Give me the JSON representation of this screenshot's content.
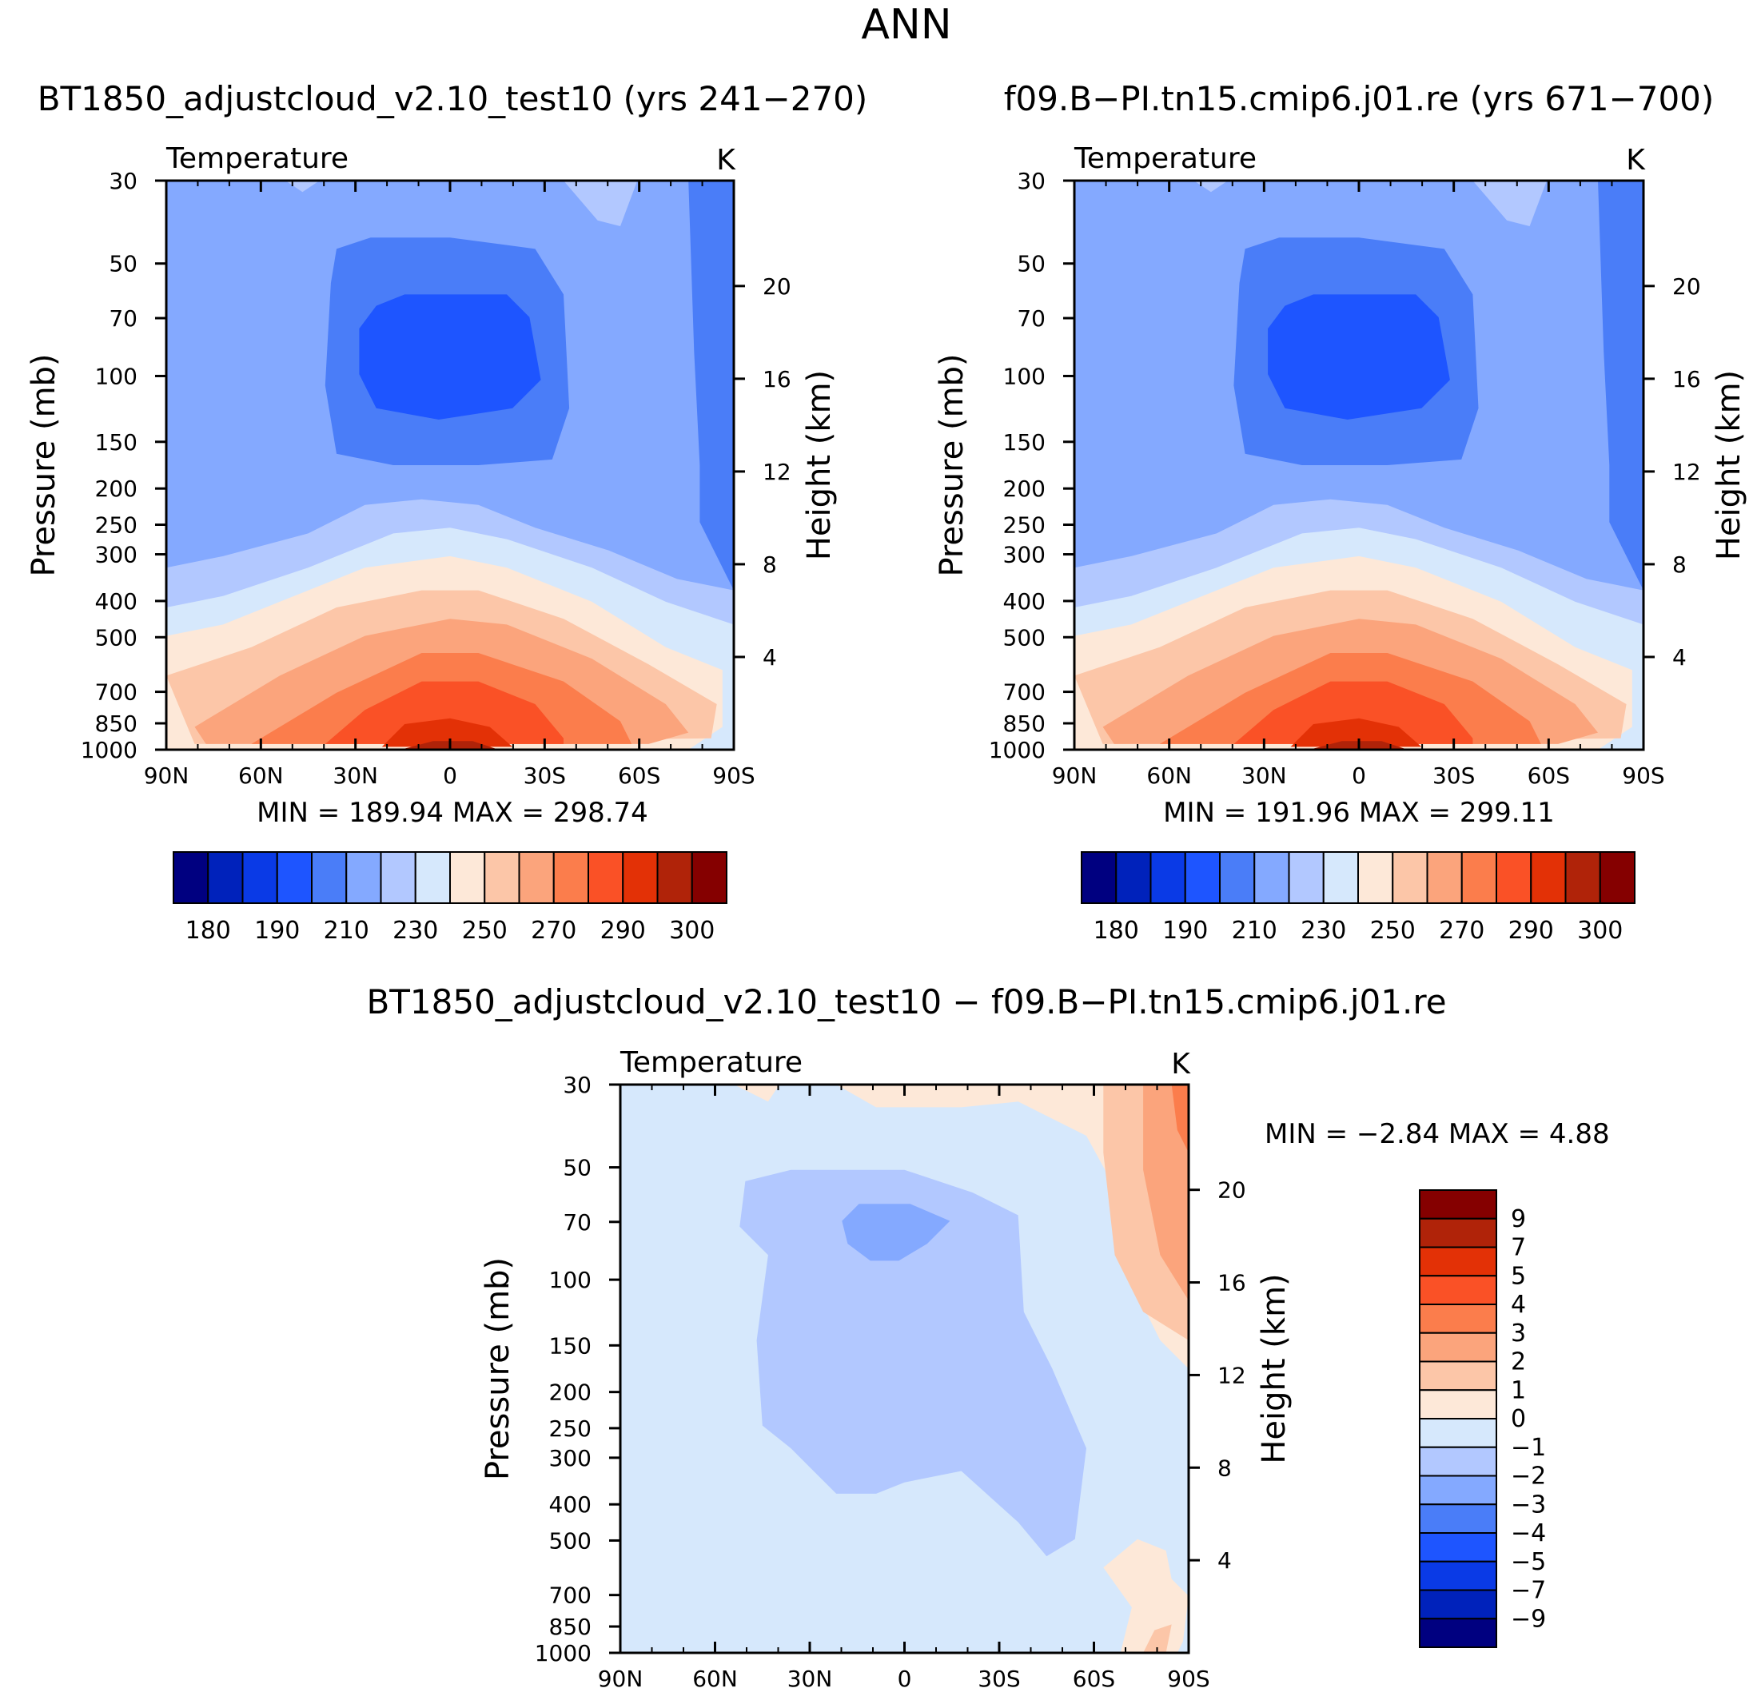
{
  "figure_title": "ANN",
  "chart_data": [
    {
      "id": "p1",
      "type": "contour",
      "title": "BT1850_adjustcloud_v2.10_test10 (yrs 241−270)",
      "variable": "Temperature",
      "units": "K",
      "xlabel": "",
      "ylabel": "Pressure (mb)",
      "ylabel_right": "Height (km)",
      "x_ticks": [
        "90N",
        "60N",
        "30N",
        "0",
        "30S",
        "60S",
        "90S"
      ],
      "y_ticks": [
        30,
        50,
        70,
        100,
        150,
        200,
        250,
        300,
        400,
        500,
        700,
        850,
        1000
      ],
      "height_ticks": [
        20,
        16,
        12,
        8,
        4
      ],
      "ylim": [
        1000,
        30
      ],
      "min_max_text": "MIN = 189.94   MAX = 298.74",
      "min": 189.94,
      "max": 298.74,
      "colorbar_labels": [
        "180",
        "190",
        "210",
        "230",
        "250",
        "270",
        "290",
        "300"
      ],
      "levels": [
        180,
        185,
        190,
        200,
        210,
        220,
        230,
        240,
        250,
        260,
        270,
        280,
        290,
        295,
        300
      ],
      "contours": [
        {
          "level": 210,
          "region": "upper atmosphere, all latitudes"
        },
        {
          "level": 200,
          "region": "tropical tropopause 50-150 mb, and south polar column"
        },
        {
          "level": 190,
          "region": "tropical tropopause core 70-150 mb"
        },
        {
          "level": 230,
          "region": "300-400 mb band"
        },
        {
          "level": 250,
          "region": "500 mb band"
        },
        {
          "level": 270,
          "region": "700 mb band"
        },
        {
          "level": 290,
          "region": "surface tropics"
        }
      ]
    },
    {
      "id": "p2",
      "type": "contour",
      "title": "f09.B−PI.tn15.cmip6.j01.re (yrs 671−700)",
      "variable": "Temperature",
      "units": "K",
      "xlabel": "",
      "ylabel": "Pressure (mb)",
      "ylabel_right": "Height (km)",
      "x_ticks": [
        "90N",
        "60N",
        "30N",
        "0",
        "30S",
        "60S",
        "90S"
      ],
      "y_ticks": [
        30,
        50,
        70,
        100,
        150,
        200,
        250,
        300,
        400,
        500,
        700,
        850,
        1000
      ],
      "height_ticks": [
        20,
        16,
        12,
        8,
        4
      ],
      "ylim": [
        1000,
        30
      ],
      "min_max_text": "MIN = 191.96   MAX = 299.11",
      "min": 191.96,
      "max": 299.11,
      "colorbar_labels": [
        "180",
        "190",
        "210",
        "230",
        "250",
        "270",
        "290",
        "300"
      ],
      "levels": [
        180,
        185,
        190,
        200,
        210,
        220,
        230,
        240,
        250,
        260,
        270,
        280,
        290,
        295,
        300
      ]
    },
    {
      "id": "p3",
      "type": "contour",
      "title": "BT1850_adjustcloud_v2.10_test10 − f09.B−PI.tn15.cmip6.j01.re",
      "variable": "Temperature",
      "units": "K",
      "xlabel": "",
      "ylabel": "Pressure (mb)",
      "ylabel_right": "Height (km)",
      "x_ticks": [
        "90N",
        "60N",
        "30N",
        "0",
        "30S",
        "60S",
        "90S"
      ],
      "y_ticks": [
        30,
        50,
        70,
        100,
        150,
        200,
        250,
        300,
        400,
        500,
        700,
        850,
        1000
      ],
      "height_ticks": [
        20,
        16,
        12,
        8,
        4
      ],
      "ylim": [
        1000,
        30
      ],
      "min_max_text": "MIN =    −2.84   MAX =     4.88",
      "min": -2.84,
      "max": 4.88,
      "colorbar_labels": [
        "9",
        "7",
        "5",
        "4",
        "3",
        "2",
        "1",
        "0",
        "−1",
        "−2",
        "−3",
        "−4",
        "−5",
        "−7",
        "−9"
      ],
      "levels": [
        -9,
        -7,
        -5,
        -4,
        -3,
        -2,
        -1,
        0,
        1,
        2,
        3,
        4,
        5,
        7,
        9
      ]
    }
  ],
  "colors": {
    "temperature_bins": [
      "#000080",
      "#0022bb",
      "#0a3ae6",
      "#1e55ff",
      "#4a7df8",
      "#84a9ff",
      "#b2c8ff",
      "#d6e8fc",
      "#fde8d8",
      "#fcc6a8",
      "#fba47c",
      "#fb7d4c",
      "#fa5126",
      "#e33106",
      "#b02309",
      "#850000"
    ],
    "diff_bins": [
      "#000080",
      "#0022bb",
      "#0a3ae6",
      "#1e55ff",
      "#4a7df8",
      "#84a9ff",
      "#b2c8ff",
      "#d6e8fc",
      "#fde8d8",
      "#fcc6a8",
      "#fba47c",
      "#fb7d4c",
      "#fa5126",
      "#e33106",
      "#b02309",
      "#850000"
    ]
  }
}
